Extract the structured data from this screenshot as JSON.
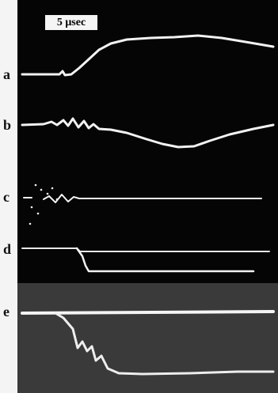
{
  "scale_label": "5 μsec",
  "traces": [
    {
      "label": "a"
    },
    {
      "label": "b"
    },
    {
      "label": "c"
    },
    {
      "label": "d"
    },
    {
      "label": "e"
    }
  ],
  "colors": {
    "scope_background": "#050505",
    "lower_panel_background": "#3a3a3a",
    "trace": "#f2f2f2",
    "page": "#ffffff"
  }
}
